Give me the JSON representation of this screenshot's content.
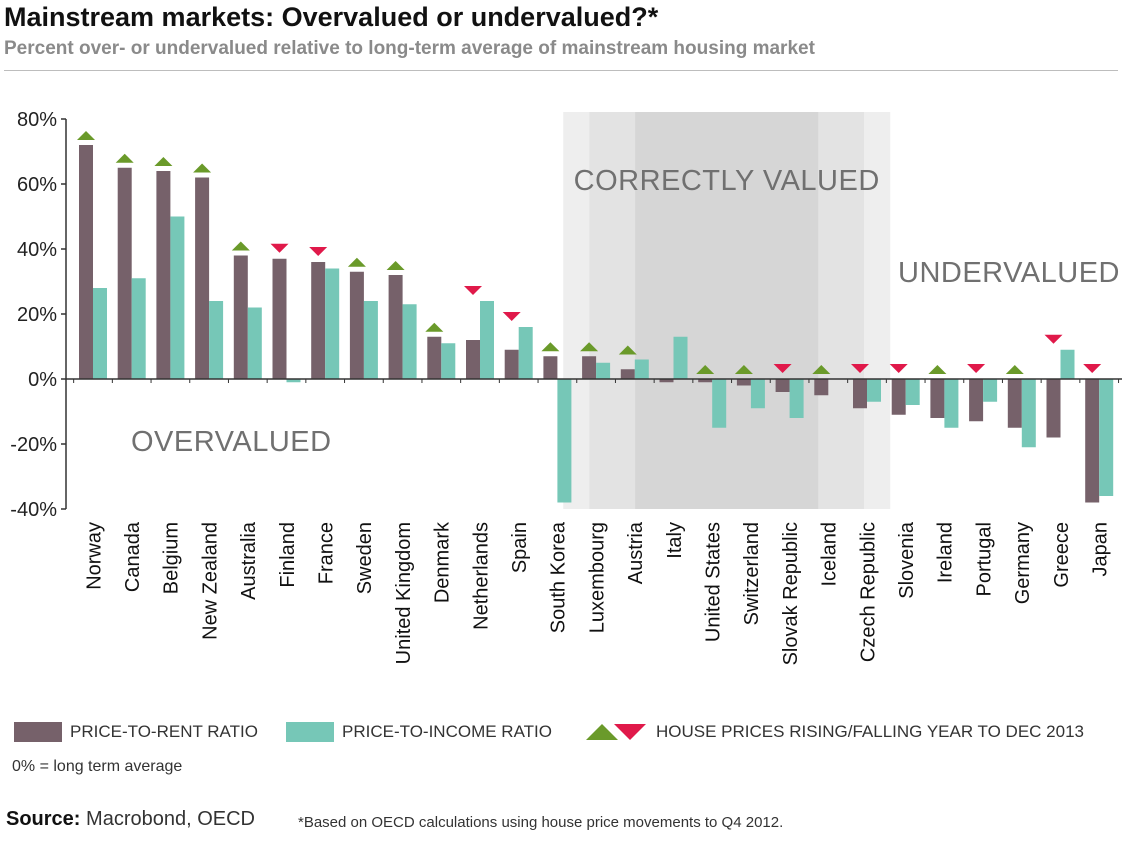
{
  "colors": {
    "price_to_rent": "#76616a",
    "price_to_income": "#76c7b7",
    "rising": "#6a9a2a",
    "falling": "#e0194a",
    "zone_light": "#eeeeee",
    "zone_mid": "#e3e3e3",
    "zone_dark": "#d6d6d6",
    "zone_text": "#707070",
    "axis": "#333333"
  },
  "chart_data": {
    "type": "bar",
    "title": "Mainstream markets: Overvalued or undervalued?*",
    "subtitle": "Percent over- or undervalued relative to long-term average of mainstream housing market",
    "ylim": [
      -40,
      80
    ],
    "yticks": [
      80,
      60,
      40,
      20,
      0,
      -20,
      -40
    ],
    "ytick_labels": [
      "80%",
      "60%",
      "40%",
      "20%",
      "0%",
      "-20%",
      "-40%"
    ],
    "categories": [
      "Norway",
      "Canada",
      "Belgium",
      "New Zealand",
      "Australia",
      "Finland",
      "France",
      "Sweden",
      "United Kingdom",
      "Denmark",
      "Netherlands",
      "Spain",
      "South Korea",
      "Luxembourg",
      "Austria",
      "Italy",
      "United States",
      "Switzerland",
      "Slovak Republic",
      "Iceland",
      "Czech Republic",
      "Slovenia",
      "Ireland",
      "Portugal",
      "Germany",
      "Greece",
      "Japan"
    ],
    "series": [
      {
        "name": "PRICE-TO-RENT RATIO",
        "values": [
          72,
          65,
          64,
          62,
          38,
          37,
          36,
          33,
          32,
          13,
          12,
          9,
          7,
          7,
          3,
          -1,
          -1,
          -2,
          -4,
          -5,
          -9,
          -11,
          -12,
          -13,
          -15,
          -18,
          -38
        ]
      },
      {
        "name": "PRICE-TO-INCOME RATIO",
        "values": [
          28,
          31,
          50,
          24,
          22,
          -1,
          34,
          24,
          23,
          11,
          24,
          16,
          -38,
          5,
          6,
          13,
          -15,
          -9,
          -12,
          null,
          -7,
          -8,
          -15,
          -7,
          -21,
          9,
          -36
        ]
      }
    ],
    "trend": [
      "up",
      "up",
      "up",
      "up",
      "up",
      "down",
      "down",
      "up",
      "up",
      "up",
      "down",
      "down",
      "up",
      "up",
      "up",
      null,
      "up",
      "up",
      "down",
      "up",
      "down",
      "down",
      "up",
      "down",
      "up",
      "down",
      "down"
    ],
    "zones": {
      "overvalued": "OVERVALUED",
      "correctly_valued": "CORRECTLY VALUED",
      "undervalued": "UNDERVALUED"
    },
    "zone_span": {
      "from_category": "Luxembourg",
      "to_category": "Czech Republic"
    },
    "legend": {
      "price_to_rent": "PRICE-TO-RENT RATIO",
      "price_to_income": "PRICE-TO-INCOME RATIO",
      "trend": "HOUSE PRICES RISING/FALLING YEAR TO DEC 2013"
    },
    "grid": false
  },
  "note": "0%  = long term average",
  "source_label": "Source:",
  "source_text": "Macrobond, OECD",
  "footnote": "*Based on OECD calculations using house price movements to Q4 2012."
}
